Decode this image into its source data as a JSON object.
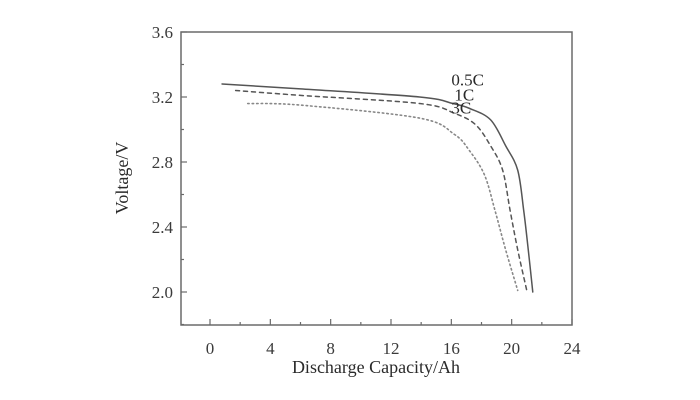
{
  "chart_data": {
    "type": "line",
    "title": "",
    "xlabel": "Discharge Capacity/Ah",
    "ylabel": "Voltage/V",
    "xlim": [
      -1.92,
      24
    ],
    "ylim": [
      1.8,
      3.6
    ],
    "xticks": [
      0,
      4,
      8,
      12,
      16,
      20,
      24
    ],
    "xtick_labels": [
      "0",
      "4",
      "8",
      "12",
      "16",
      "20",
      "24"
    ],
    "yticks": [
      2.0,
      2.4,
      2.8,
      3.2,
      3.6
    ],
    "ytick_labels": [
      "2.0",
      "2.4",
      "2.8",
      "3.2",
      "3.6"
    ],
    "grid": false,
    "legend": "inline labels near curve knees",
    "series": [
      {
        "name": "0.5C",
        "style": "solid",
        "color": "#555555",
        "x": [
          0.8,
          6.0,
          13.9,
          16.1,
          17.2,
          18.6,
          19.6,
          20.4,
          20.8,
          21.1,
          21.4
        ],
        "y": [
          3.28,
          3.25,
          3.2,
          3.16,
          3.13,
          3.06,
          2.9,
          2.75,
          2.5,
          2.26,
          2.0
        ]
      },
      {
        "name": "1C",
        "style": "dashed",
        "color": "#555555",
        "x": [
          1.7,
          6.0,
          13.9,
          16.2,
          17.6,
          18.6,
          19.4,
          19.9,
          20.4,
          21.0
        ],
        "y": [
          3.24,
          3.21,
          3.16,
          3.1,
          3.03,
          2.9,
          2.75,
          2.5,
          2.26,
          2.01
        ]
      },
      {
        "name": "3C",
        "style": "dotted",
        "color": "#888888",
        "x": [
          2.5,
          6.0,
          13.9,
          16.2,
          17.2,
          18.2,
          18.9,
          19.6,
          20.4
        ],
        "y": [
          3.16,
          3.15,
          3.07,
          2.97,
          2.87,
          2.72,
          2.5,
          2.26,
          2.01
        ]
      }
    ],
    "annotations": [
      {
        "text": "0.5C",
        "x": 16.0,
        "y": 3.27
      },
      {
        "text": "1C",
        "x": 16.2,
        "y": 3.18
      },
      {
        "text": "3C",
        "x": 16.0,
        "y": 3.1
      }
    ]
  }
}
